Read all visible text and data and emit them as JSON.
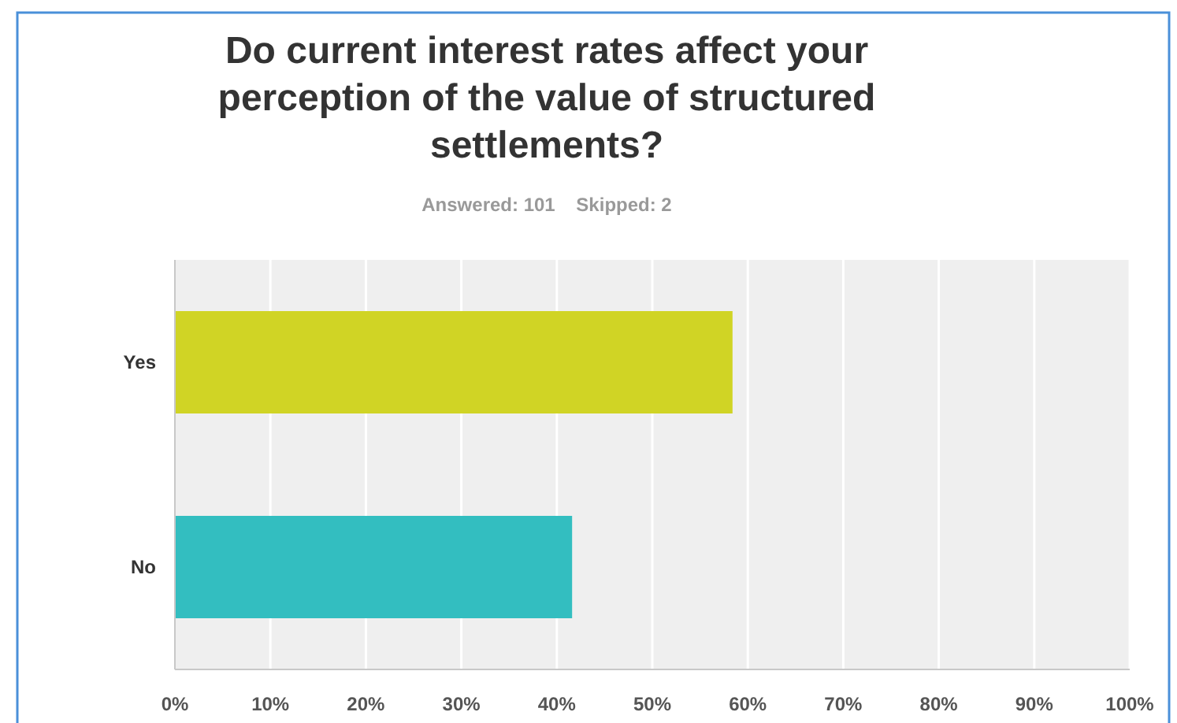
{
  "chart_data": {
    "type": "bar",
    "orientation": "horizontal",
    "title": "Do current interest rates affect your perception of the value of structured settlements?",
    "subtitle": "Answered: 101    Skipped: 2",
    "categories": [
      "Yes",
      "No"
    ],
    "values": [
      58.4,
      41.6
    ],
    "colors": [
      "#d0d425",
      "#33bec0"
    ],
    "xlim": [
      0,
      100
    ],
    "xticks": [
      {
        "value": 0,
        "label": "0%"
      },
      {
        "value": 10,
        "label": "10%"
      },
      {
        "value": 20,
        "label": "20%"
      },
      {
        "value": 30,
        "label": "30%"
      },
      {
        "value": 40,
        "label": "40%"
      },
      {
        "value": 50,
        "label": "50%"
      },
      {
        "value": 60,
        "label": "60%"
      },
      {
        "value": 70,
        "label": "70%"
      },
      {
        "value": 80,
        "label": "80%"
      },
      {
        "value": 90,
        "label": "90%"
      },
      {
        "value": 100,
        "label": "100%"
      }
    ],
    "grid": "x"
  }
}
